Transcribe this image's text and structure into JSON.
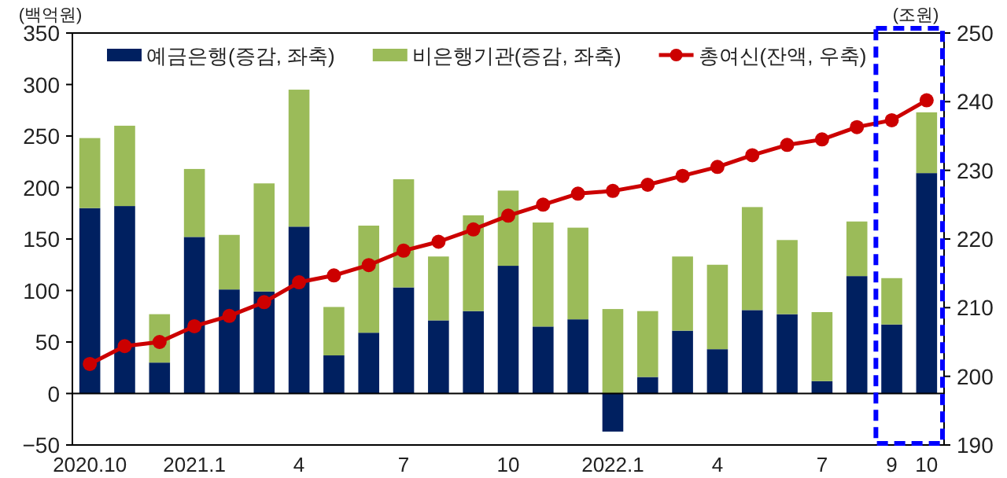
{
  "chart_data": {
    "type": "bar",
    "stacked": true,
    "legend": "top",
    "ylabel": "(백억원)",
    "y2label": "(조원)",
    "categories": [
      "2020.10",
      null,
      null,
      "2021.1",
      null,
      null,
      "4",
      null,
      null,
      "7",
      null,
      null,
      "10",
      null,
      null,
      "2022.1",
      null,
      null,
      "4",
      null,
      null,
      "7",
      null,
      "9",
      "10"
    ],
    "series": [
      {
        "name": "예금은행(증감, 좌축)",
        "color": "#002060",
        "values": [
          180,
          182,
          30,
          152,
          101,
          99,
          162,
          37,
          59,
          103,
          71,
          80,
          124,
          65,
          72,
          -37,
          16,
          61,
          43,
          81,
          77,
          12,
          114,
          67,
          214
        ]
      },
      {
        "name": "비은행기관(증감, 좌축)",
        "color": "#9bbb59",
        "values": [
          68,
          78,
          47,
          66,
          53,
          105,
          133,
          47,
          104,
          105,
          62,
          93,
          73,
          101,
          89,
          82,
          64,
          72,
          82,
          100,
          72,
          67,
          53,
          45,
          59
        ]
      },
      {
        "name": "총여신(잔액, 우축)",
        "type": "line",
        "axis": "y2",
        "marker": "circle",
        "color": "#cc0000",
        "values": [
          201.8,
          204.4,
          205.0,
          207.3,
          208.8,
          210.8,
          213.7,
          214.7,
          216.2,
          218.3,
          219.6,
          221.4,
          223.4,
          225.0,
          226.6,
          227.0,
          227.9,
          229.2,
          230.5,
          232.2,
          233.7,
          234.5,
          236.3,
          237.3,
          240.2
        ]
      }
    ],
    "ylim": [
      -50,
      350
    ],
    "yticks": [
      {
        "value": -50,
        "label": "−50"
      },
      0,
      50,
      100,
      150,
      200,
      250,
      300,
      350
    ],
    "y2lim": [
      190,
      250
    ],
    "y2ticks": [
      190,
      200,
      210,
      220,
      230,
      240,
      250
    ]
  }
}
